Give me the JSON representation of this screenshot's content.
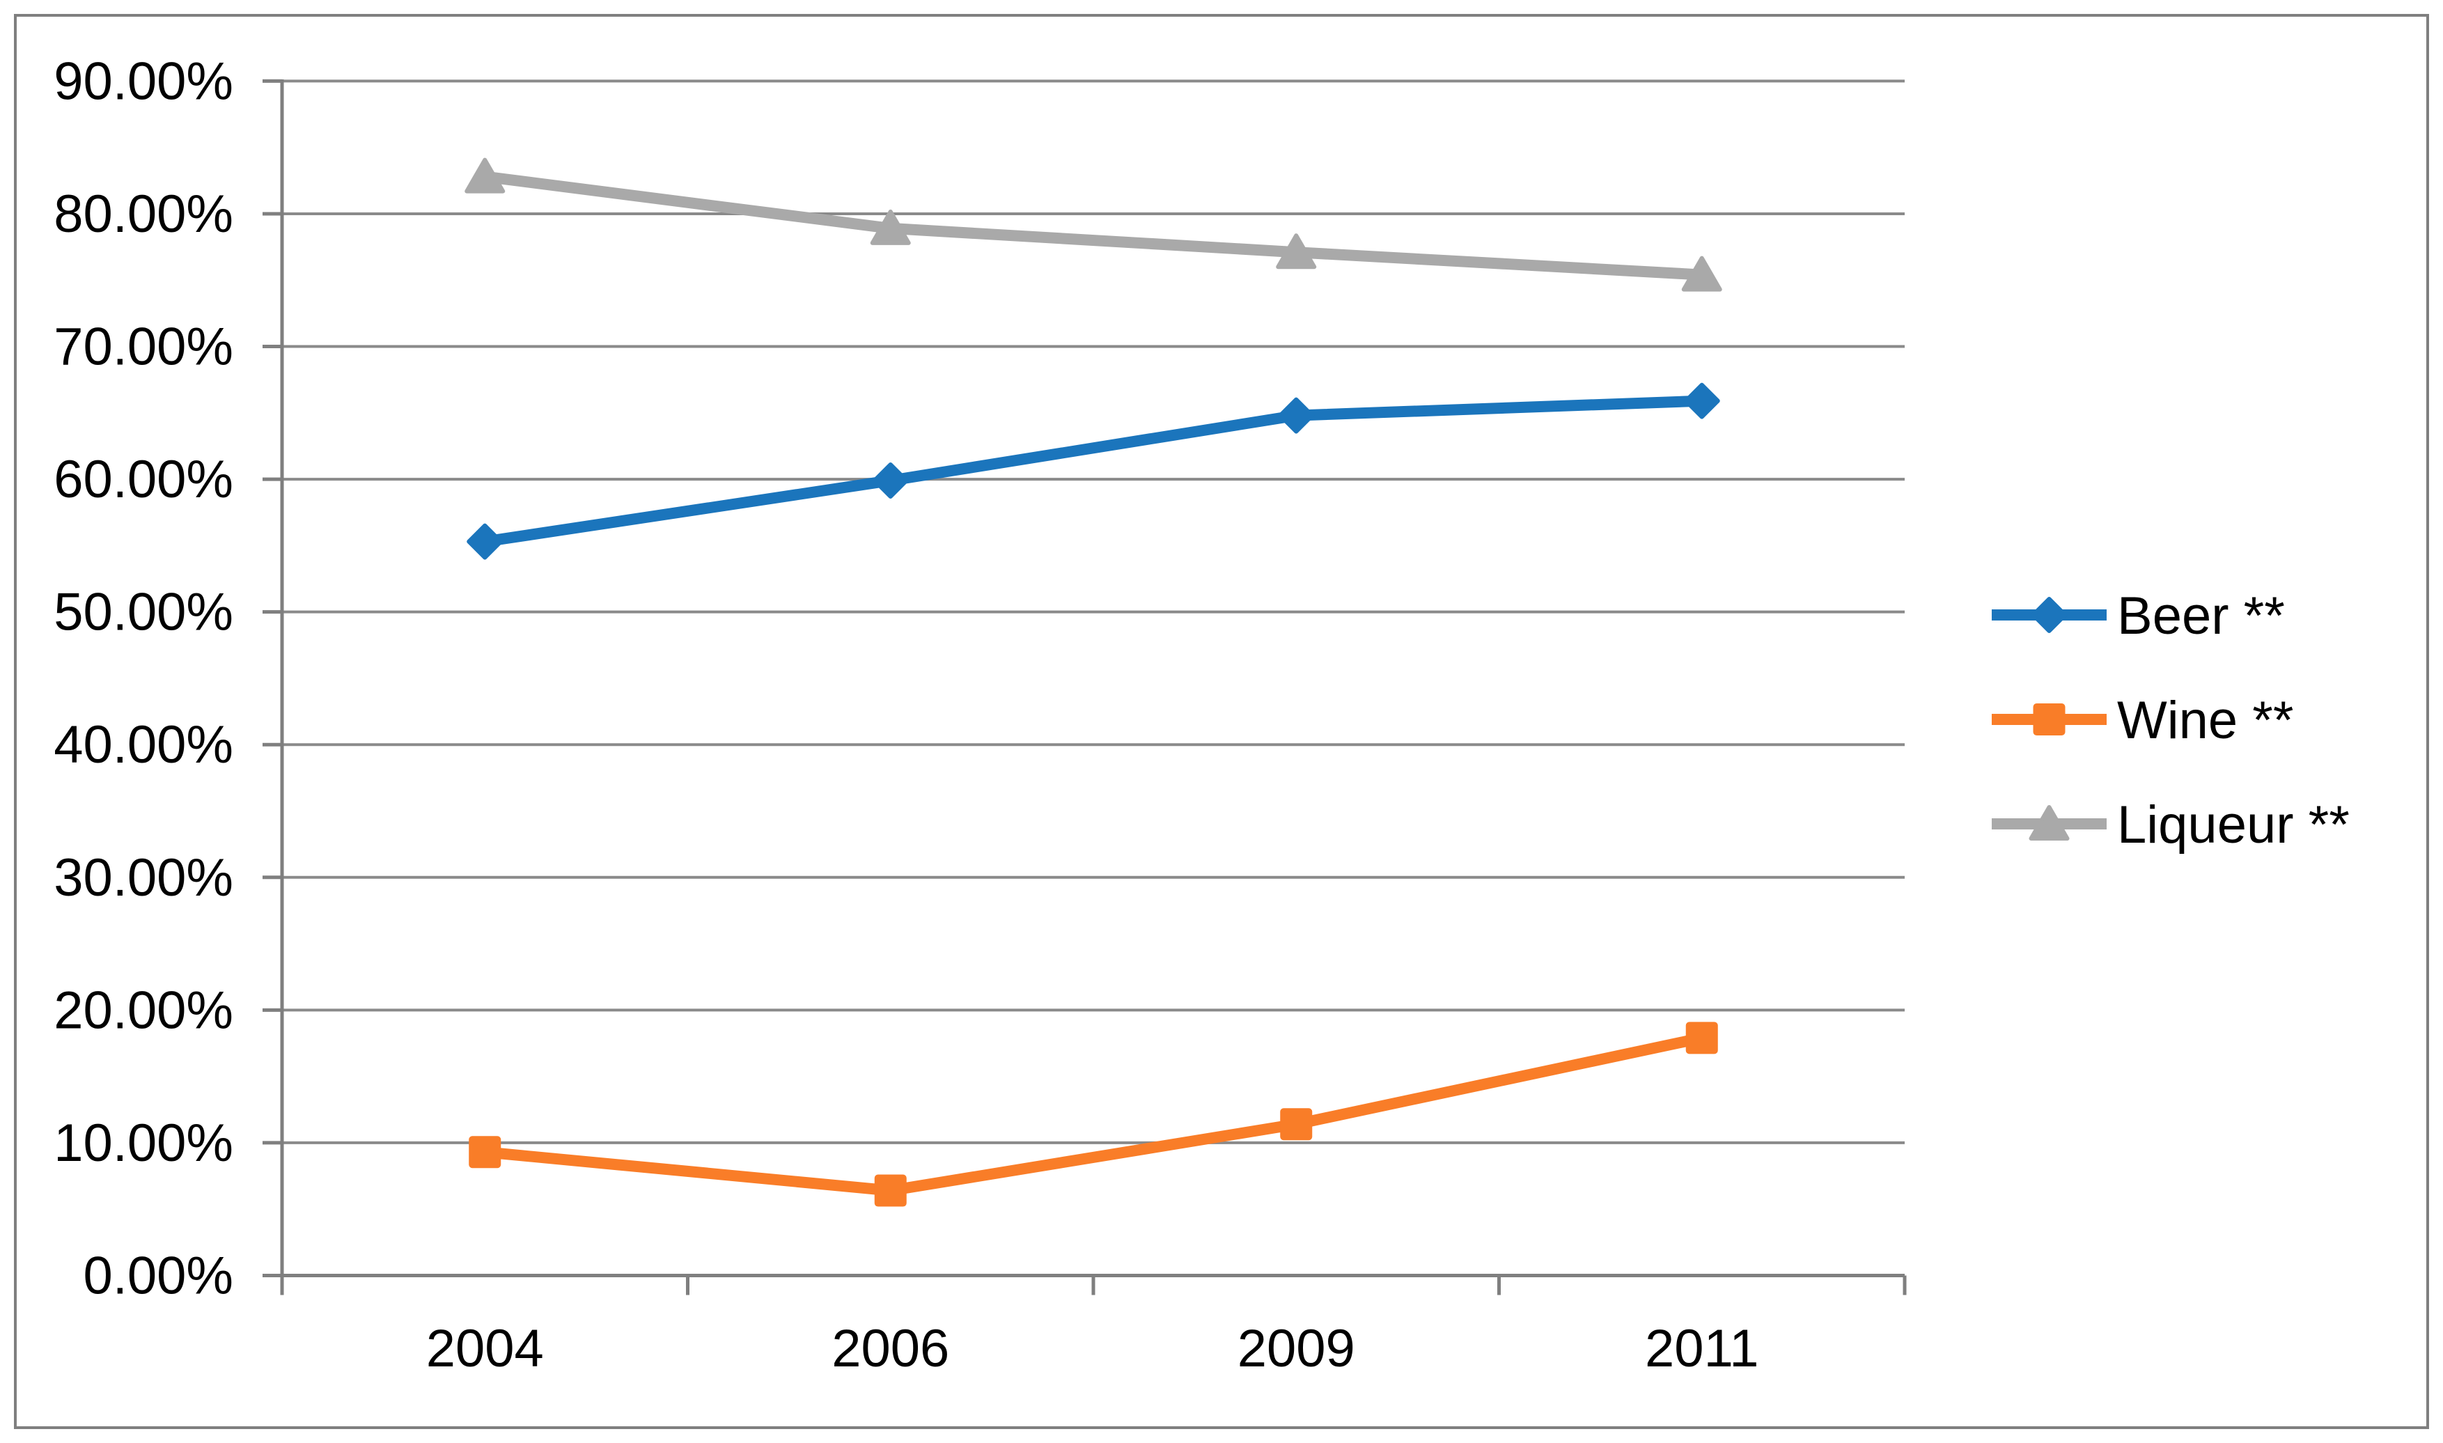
{
  "chart_data": {
    "type": "line",
    "title": "",
    "xlabel": "",
    "ylabel": "",
    "categories": [
      "2004",
      "2006",
      "2009",
      "2011"
    ],
    "series": [
      {
        "name": "Beer **",
        "marker": "diamond",
        "color": "#1B75BC",
        "values": [
          55.3,
          59.9,
          64.8,
          65.9
        ]
      },
      {
        "name": "Wine **",
        "marker": "square",
        "color": "#F97D28",
        "values": [
          9.3,
          6.4,
          11.4,
          17.9
        ]
      },
      {
        "name": "Liqueur **",
        "marker": "triangle",
        "color": "#A9A9A9",
        "values": [
          82.8,
          78.9,
          77.1,
          75.4
        ]
      }
    ],
    "ylim": [
      0,
      90
    ],
    "y_tick_step": 10,
    "y_tick_labels": [
      "0.00%",
      "10.00%",
      "20.00%",
      "30.00%",
      "40.00%",
      "50.00%",
      "60.00%",
      "70.00%",
      "80.00%",
      "90.00%"
    ],
    "grid": true,
    "legend_position": "middle-right",
    "colors": {
      "background": "#FFFFFF",
      "gridline": "#8A8A8A",
      "axis": "#7F7F7F",
      "border": "#7F7F7F",
      "text": "#000000"
    }
  }
}
